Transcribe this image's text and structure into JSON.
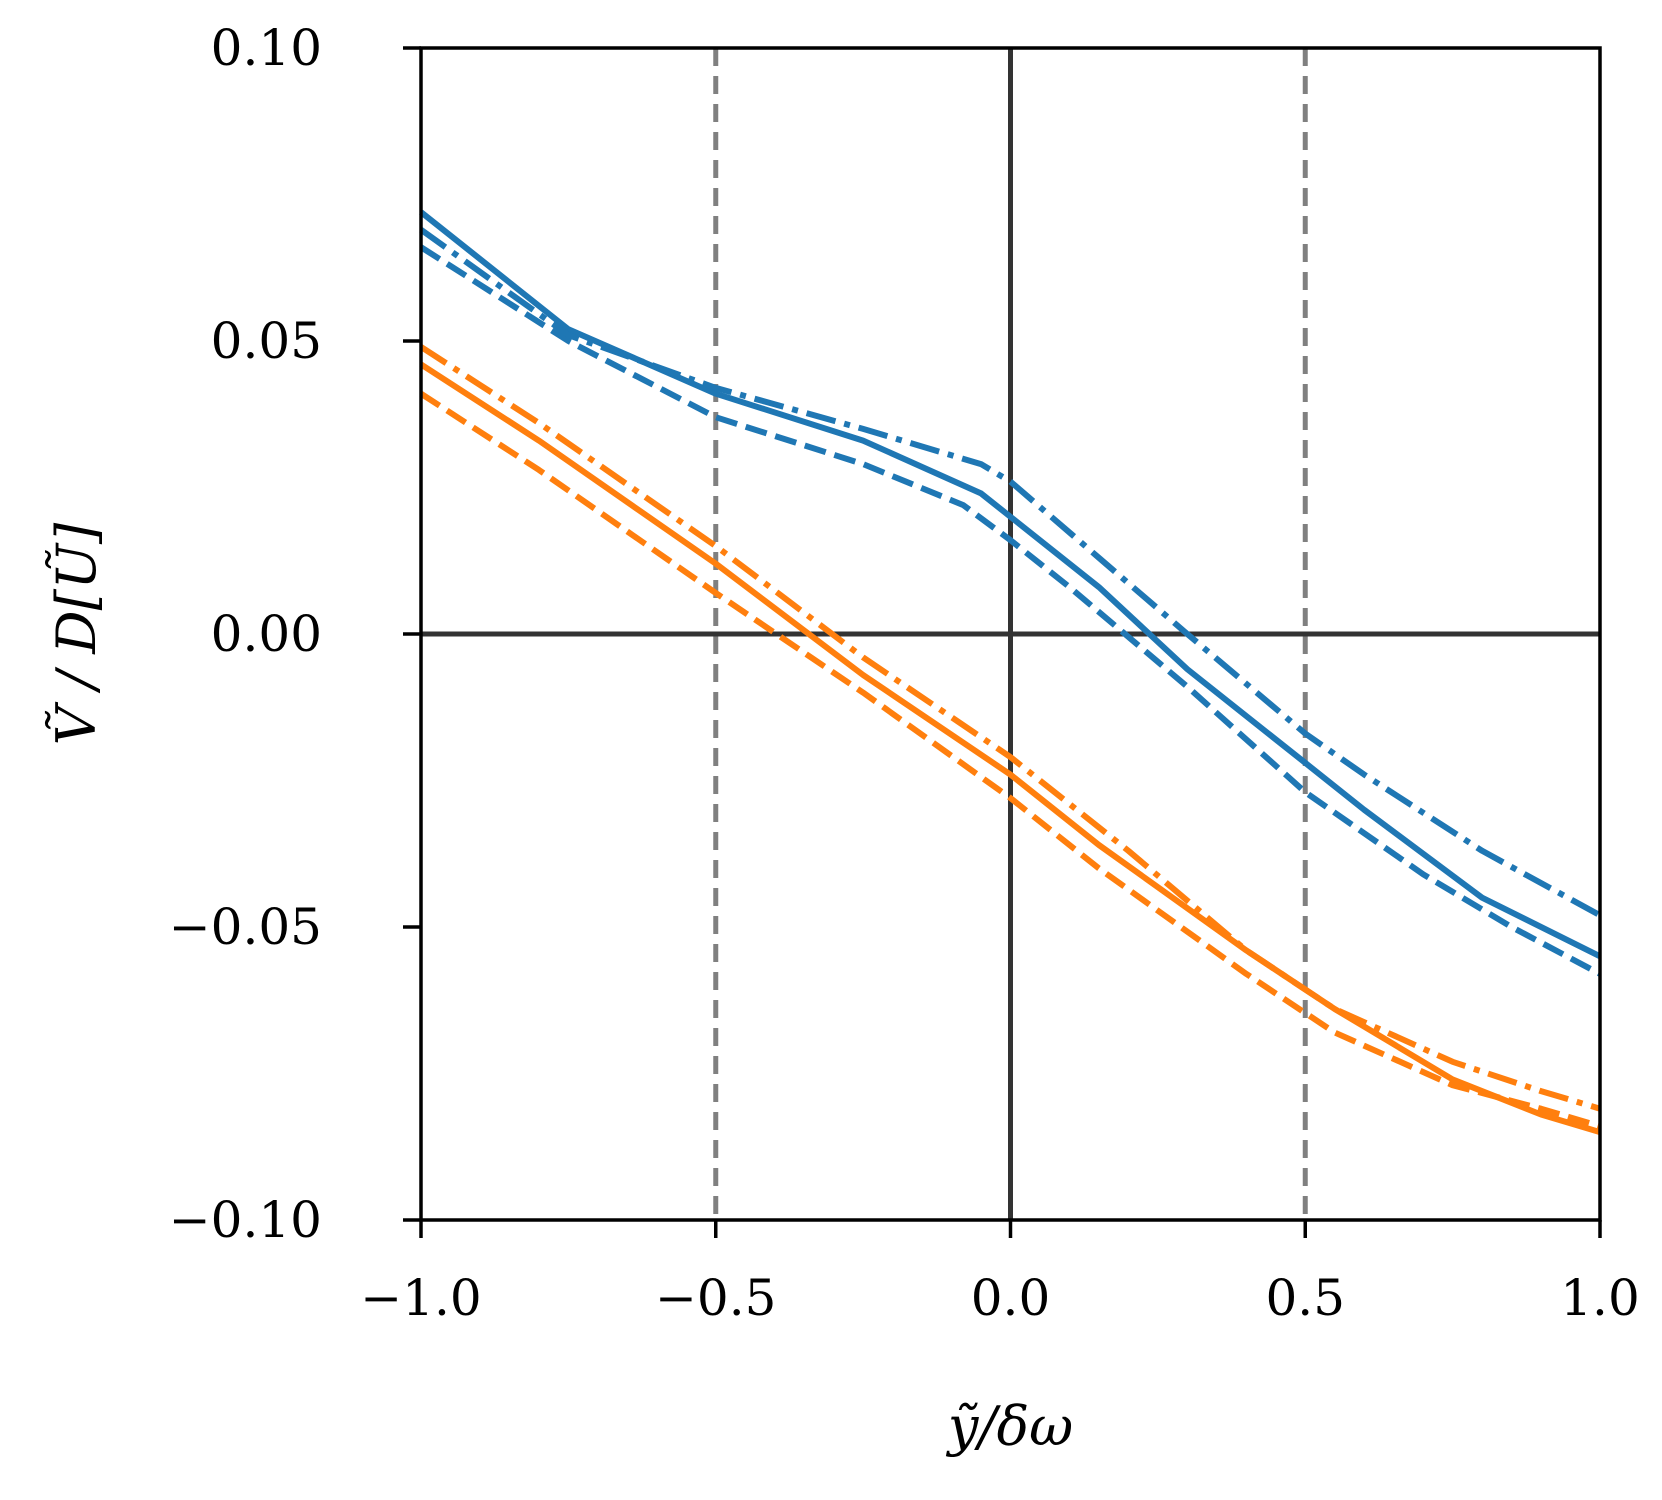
{
  "chart_data": {
    "type": "line",
    "title": "",
    "xlabel": "ỹ/δω",
    "ylabel": "Ṽ / D[Ũ]",
    "xlim": [
      -1.0,
      1.0
    ],
    "ylim": [
      -0.1,
      0.1
    ],
    "x_ticks": [
      -1.0,
      -0.5,
      0.0,
      0.5,
      1.0
    ],
    "x_tick_labels": [
      "−1.0",
      "−0.5",
      "0.0",
      "0.5",
      "1.0"
    ],
    "y_ticks": [
      -0.1,
      -0.05,
      0.0,
      0.05,
      0.1
    ],
    "y_tick_labels": [
      "−0.10",
      "−0.05",
      "0.00",
      "0.05",
      "0.10"
    ],
    "reference_lines": {
      "vertical_dashed": [
        -0.5,
        0.5
      ],
      "vertical_solid": [
        0.0
      ],
      "horizontal_solid": [
        0.0
      ]
    },
    "grid": false,
    "legend": "none",
    "series": [
      {
        "color": "#1f77b4",
        "style": "solid",
        "x": [
          -1.0,
          -0.75,
          -0.5,
          -0.25,
          -0.05,
          0.0,
          0.15,
          0.3,
          0.5,
          0.6,
          0.8,
          1.0
        ],
        "y": [
          0.072,
          0.052,
          0.041,
          0.033,
          0.024,
          0.02,
          0.008,
          -0.006,
          -0.022,
          -0.03,
          -0.045,
          -0.055
        ]
      },
      {
        "color": "#1f77b4",
        "style": "dashed",
        "x": [
          -1.0,
          -0.75,
          -0.5,
          -0.25,
          -0.08,
          0.0,
          0.1,
          0.3,
          0.5,
          0.7,
          0.85,
          1.0
        ],
        "y": [
          0.066,
          0.05,
          0.037,
          0.029,
          0.022,
          0.016,
          0.008,
          -0.009,
          -0.027,
          -0.041,
          -0.05,
          -0.058
        ]
      },
      {
        "color": "#1f77b4",
        "style": "dashdot",
        "x": [
          -1.0,
          -0.75,
          -0.5,
          -0.25,
          -0.05,
          0.0,
          0.15,
          0.3,
          0.5,
          0.6,
          0.8,
          1.0
        ],
        "y": [
          0.069,
          0.051,
          0.042,
          0.035,
          0.029,
          0.026,
          0.013,
          0.0,
          -0.017,
          -0.024,
          -0.037,
          -0.048
        ]
      },
      {
        "color": "#ff7f0e",
        "style": "solid",
        "x": [
          -1.0,
          -0.8,
          -0.5,
          -0.25,
          0.0,
          0.15,
          0.4,
          0.55,
          0.75,
          0.9,
          1.0
        ],
        "y": [
          0.046,
          0.033,
          0.012,
          -0.007,
          -0.024,
          -0.036,
          -0.054,
          -0.064,
          -0.076,
          -0.082,
          -0.085
        ]
      },
      {
        "color": "#ff7f0e",
        "style": "dashed",
        "x": [
          -1.0,
          -0.8,
          -0.5,
          -0.25,
          0.0,
          0.15,
          0.4,
          0.55,
          0.75,
          0.9,
          1.0
        ],
        "y": [
          0.041,
          0.028,
          0.007,
          -0.01,
          -0.028,
          -0.04,
          -0.058,
          -0.068,
          -0.077,
          -0.081,
          -0.084
        ]
      },
      {
        "color": "#ff7f0e",
        "style": "dashdot",
        "x": [
          -1.0,
          -0.8,
          -0.5,
          -0.25,
          0.0,
          0.2,
          0.4,
          0.55,
          0.75,
          0.9,
          1.0
        ],
        "y": [
          0.049,
          0.036,
          0.015,
          -0.004,
          -0.021,
          -0.037,
          -0.054,
          -0.064,
          -0.073,
          -0.078,
          -0.081
        ]
      }
    ]
  }
}
